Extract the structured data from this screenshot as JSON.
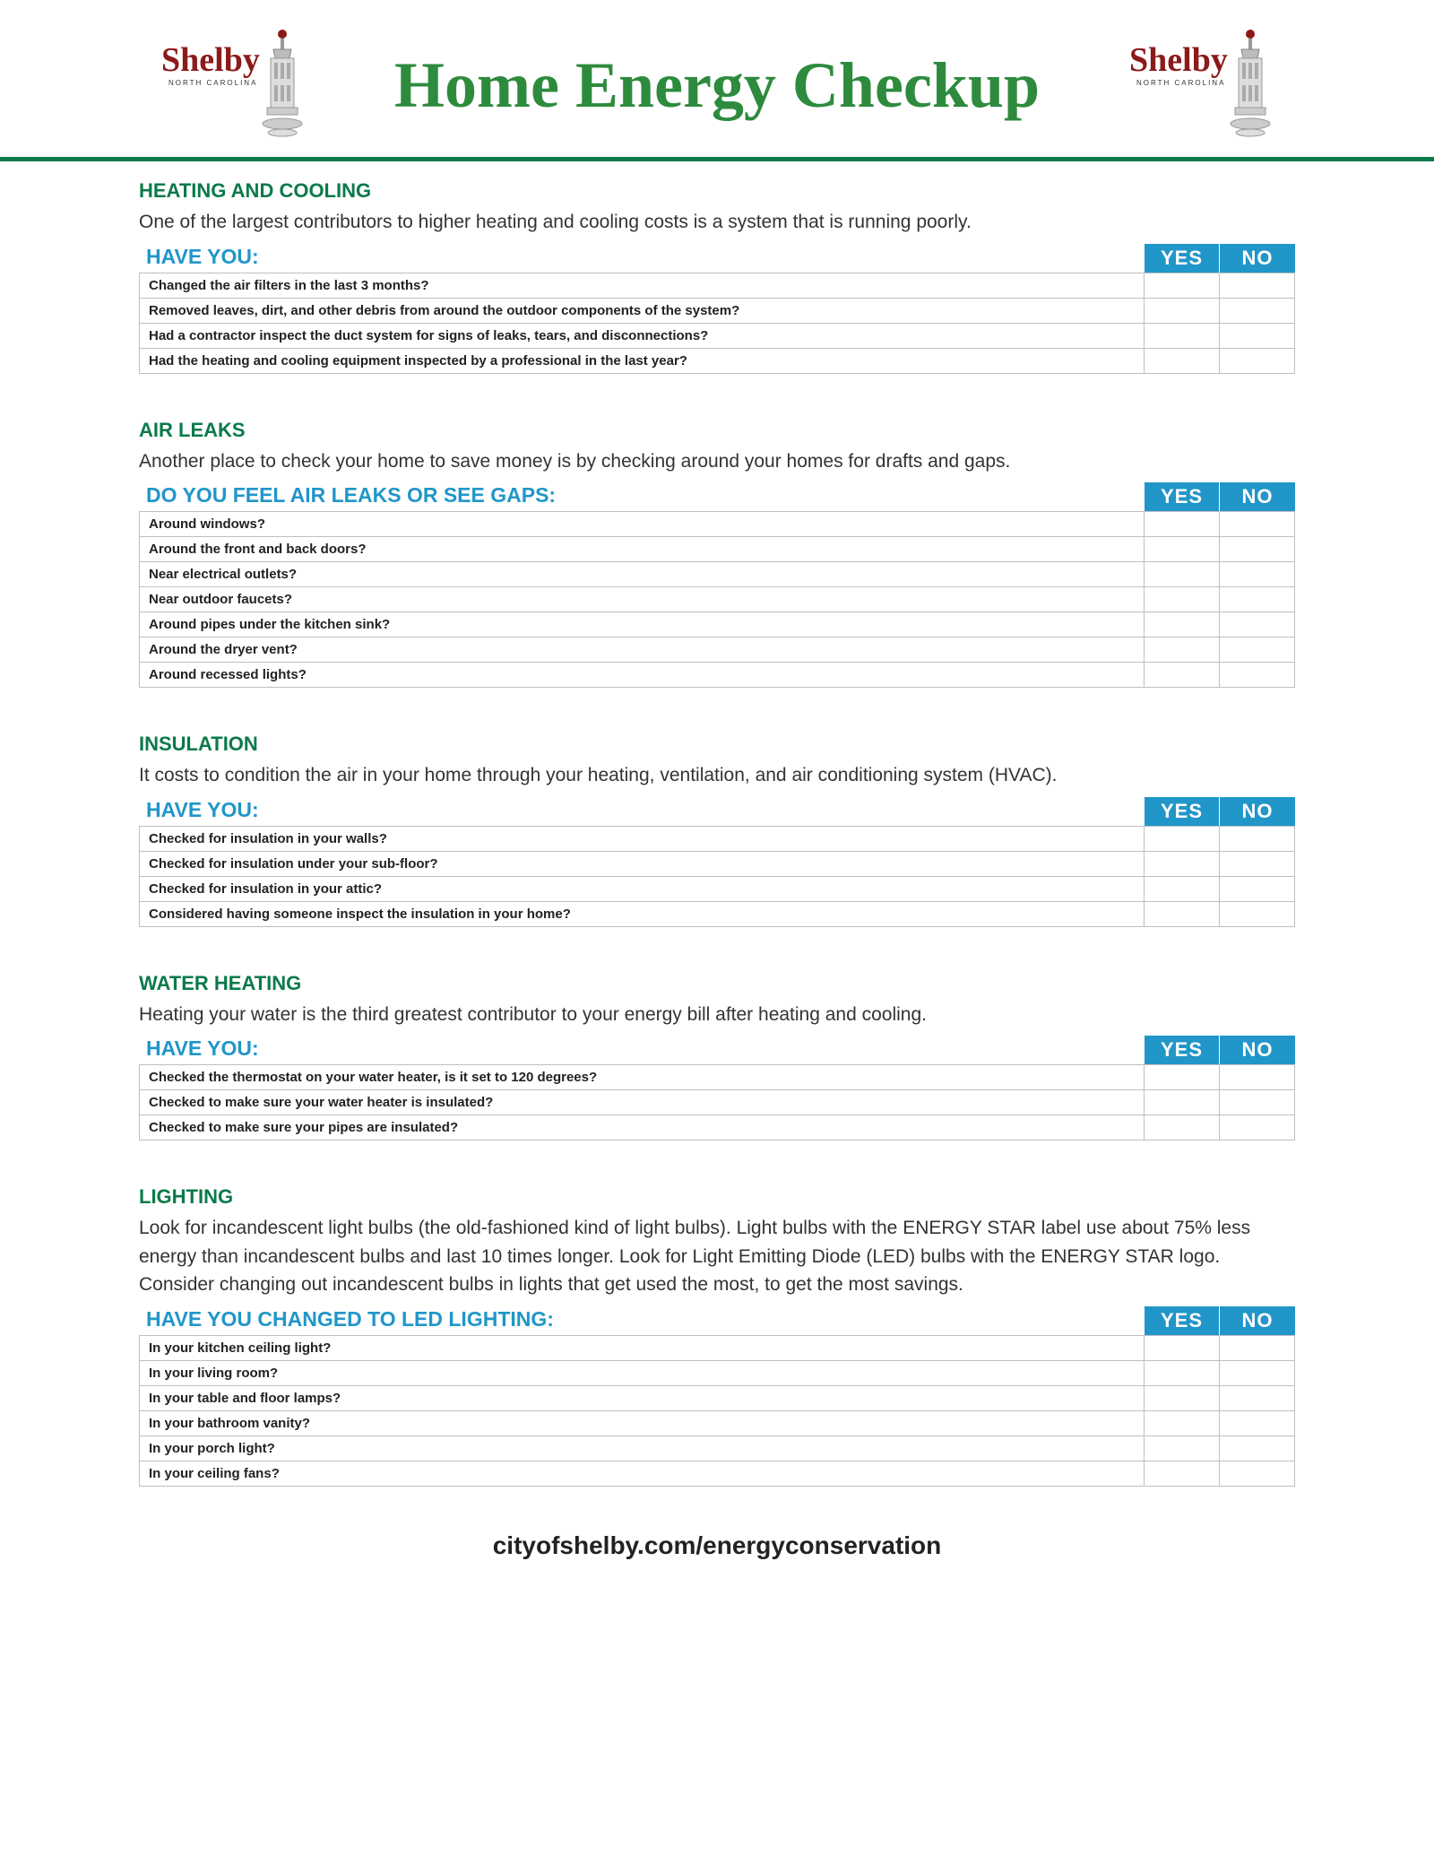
{
  "header": {
    "logo_text": "Shelby",
    "logo_sub": "NORTH CAROLINA",
    "title": "Home Energy Checkup"
  },
  "yes_label": "YES",
  "no_label": "NO",
  "sections": [
    {
      "title": "HEATING AND COOLING",
      "desc": "One of the largest contributors to higher heating and cooling costs is a system that is running poorly.",
      "prompt": "HAVE YOU:",
      "items": [
        "Changed the air filters in the last 3 months?",
        "Removed leaves, dirt, and other debris from around the outdoor components of the system?",
        "Had a contractor inspect the duct system for signs of leaks, tears, and disconnections?",
        "Had the heating and cooling equipment inspected by a professional in the last year?"
      ]
    },
    {
      "title": "AIR LEAKS",
      "desc": "Another place to check your home to save money is by checking around your homes for drafts and gaps.",
      "prompt": "DO YOU FEEL AIR LEAKS OR SEE GAPS:",
      "items": [
        "Around windows?",
        "Around the front and back doors?",
        "Near electrical outlets?",
        "Near outdoor faucets?",
        "Around pipes under the kitchen sink?",
        "Around the dryer vent?",
        "Around recessed lights?"
      ]
    },
    {
      "title": "INSULATION",
      "desc": "It costs to condition the air in your home through your heating, ventilation, and air conditioning system (HVAC).",
      "prompt": "HAVE YOU:",
      "items": [
        "Checked for insulation in your walls?",
        "Checked for insulation under your sub-floor?",
        "Checked for insulation in your attic?",
        "Considered having someone inspect the insulation in your home?"
      ]
    },
    {
      "title": "WATER HEATING",
      "desc": "Heating your water is the third greatest contributor to your energy bill after heating and cooling.",
      "prompt": "HAVE YOU:",
      "items": [
        "Checked the thermostat on your water heater, is it set to 120 degrees?",
        "Checked to make sure your water heater is insulated?",
        "Checked to make sure your pipes are insulated?"
      ]
    },
    {
      "title": "LIGHTING",
      "desc": "Look for incandescent light bulbs (the old-fashioned kind of light bulbs). Light bulbs with the ENERGY STAR label use about 75% less energy than incandescent bulbs and last 10 times longer. Look for Light Emitting Diode (LED) bulbs with the ENERGY STAR logo. Consider changing out incandescent bulbs in lights that get used the most, to get the most savings.",
      "prompt": "HAVE YOU CHANGED TO LED LIGHTING:",
      "items": [
        "In your kitchen ceiling light?",
        "In your living room?",
        "In your table and floor lamps?",
        "In your bathroom vanity?",
        "In your porch light?",
        "In your ceiling fans?"
      ]
    }
  ],
  "footer": "cityofshelby.com/energyconservation"
}
